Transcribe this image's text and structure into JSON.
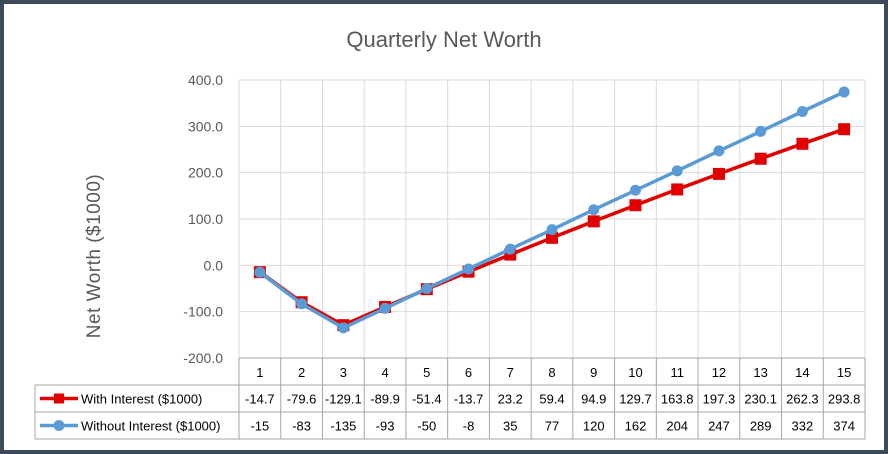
{
  "chart_data": {
    "type": "line",
    "title": "Quarterly Net Worth",
    "ylabel": "Net Worth ($1000)",
    "xlabel": "",
    "ylim": [
      -200,
      400
    ],
    "yticks": [
      "400.0",
      "300.0",
      "200.0",
      "100.0",
      "0.0",
      "-100.0",
      "-200.0"
    ],
    "ytick_values": [
      400,
      300,
      200,
      100,
      0,
      -100,
      -200
    ],
    "grid": true,
    "legend": "data-table",
    "categories": [
      "1",
      "2",
      "3",
      "4",
      "5",
      "6",
      "7",
      "8",
      "9",
      "10",
      "11",
      "12",
      "13",
      "14",
      "15"
    ],
    "series": [
      {
        "name": "With Interest ($1000)",
        "color": "#e00000",
        "marker": "square",
        "values": [
          -14.7,
          -79.6,
          -129.1,
          -89.9,
          -51.4,
          -13.7,
          23.2,
          59.4,
          94.9,
          129.7,
          163.8,
          197.3,
          230.1,
          262.3,
          293.8
        ],
        "labels": [
          "-14.7",
          "-79.6",
          "-129.1",
          "-89.9",
          "-51.4",
          "-13.7",
          "23.2",
          "59.4",
          "94.9",
          "129.7",
          "163.8",
          "197.3",
          "230.1",
          "262.3",
          "293.8"
        ]
      },
      {
        "name": "Without Interest ($1000)",
        "color": "#5b9bd5",
        "marker": "circle",
        "values": [
          -15,
          -83,
          -135,
          -93,
          -50,
          -8,
          35,
          77,
          120,
          162,
          204,
          247,
          289,
          332,
          374
        ],
        "labels": [
          "-15",
          "-83",
          "-135",
          "-93",
          "-50",
          "-8",
          "35",
          "77",
          "120",
          "162",
          "204",
          "247",
          "289",
          "332",
          "374"
        ]
      }
    ]
  }
}
